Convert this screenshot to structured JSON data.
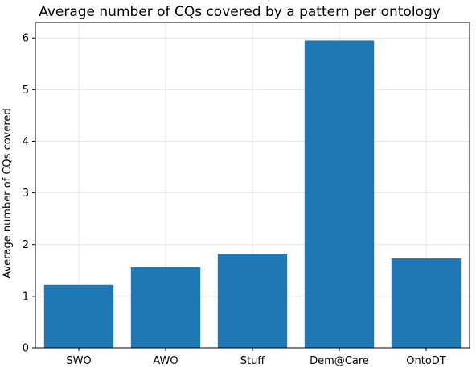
{
  "chart_data": {
    "type": "bar",
    "title": "Average number of CQs covered by a pattern per ontology",
    "xlabel": "",
    "ylabel": "Average number of CQs covered",
    "categories": [
      "SWO",
      "AWO",
      "Stuff",
      "Dem@Care",
      "OntoDT"
    ],
    "values": [
      1.22,
      1.56,
      1.82,
      5.95,
      1.73
    ],
    "ylim": [
      0,
      6.3
    ],
    "yticks": [
      0,
      1,
      2,
      3,
      4,
      5,
      6
    ],
    "grid": true,
    "legend": "none",
    "bar_color": "#1f77b4",
    "grid_color": "#e6e6e6"
  }
}
